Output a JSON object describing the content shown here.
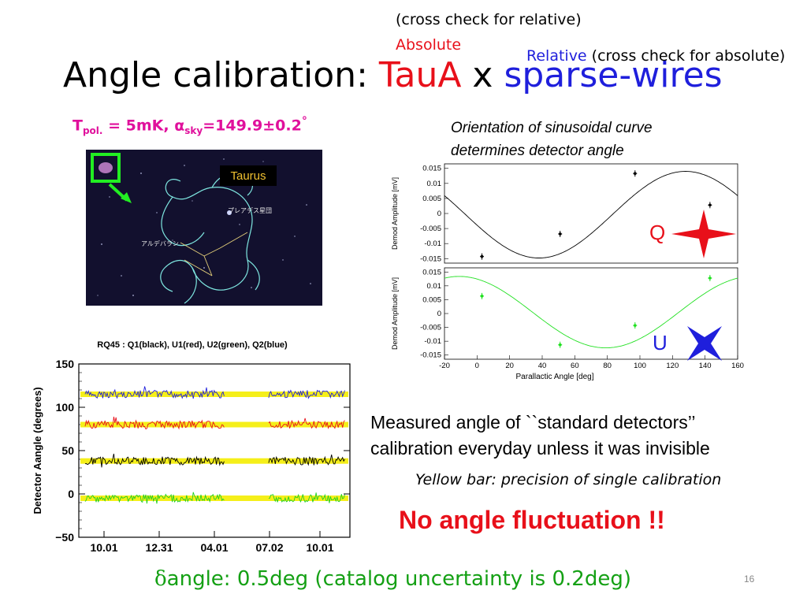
{
  "colors": {
    "red": "#e8101a",
    "blue": "#1f1fdc",
    "magenta": "#e0109c",
    "green": "#14a014",
    "yellow": "#f5ef1a"
  },
  "title": {
    "prefix": "Angle calibration: ",
    "taua": "TauA",
    "x": " x ",
    "sparse": "sparse-wires"
  },
  "notes": {
    "relative_check": "(cross check for relative)",
    "absolute": "Absolute",
    "relative": "Relative",
    "absolute_check": " (cross check for absolute)"
  },
  "tpol": {
    "t": "T",
    "sub1": "pol.",
    "mid": " = 5mK, α",
    "sub2": "sky",
    "val": "=149.9±0.2",
    "deg": "°"
  },
  "sky_image": {
    "label": "Taurus",
    "pleiades": "プレアデス星団",
    "aldebaran": "アルデバラン"
  },
  "orientation_text": {
    "line1": "Orientation of sinusoidal curve",
    "line2": "determines detector angle"
  },
  "measured_text": {
    "line1": "Measured angle of ``standard detectors’’",
    "line2": "calibration everyday unless it was invisible"
  },
  "yellow_bar_text": "Yellow bar: precision of single calibration",
  "no_fluct": "No angle fluctuation !!",
  "delta_angle": {
    "symbol": "δ",
    "text": "angle: 0.5deg (catalog uncertainty is 0.2deg)"
  },
  "page_number": "16",
  "chart_data": [
    {
      "type": "scatter",
      "name_text": "",
      "ylabel": "Demod Amplitude [mV]",
      "xlim": [
        -20,
        160
      ],
      "ylim": [
        -0.0165,
        0.0165
      ],
      "yticks": [
        "0.015",
        "0.01",
        "0.005",
        "0",
        "-0.005",
        "-0.01",
        "-0.015"
      ],
      "marker": "Q",
      "color": "#000000",
      "points": [
        {
          "x": 3,
          "y": -0.0143
        },
        {
          "x": 51,
          "y": -0.0068
        },
        {
          "x": 97,
          "y": 0.0133
        },
        {
          "x": 143,
          "y": 0.0028
        }
      ],
      "fit": {
        "amplitude": 0.0144,
        "phase_deg": 194,
        "offset": -0.0004
      }
    },
    {
      "type": "scatter",
      "ylabel": "Demod Amplitude [mV]",
      "xlabel": "Parallactic Angle [deg]",
      "xlim": [
        -20,
        160
      ],
      "ylim": [
        -0.0165,
        0.0165
      ],
      "xticks": [
        "-20",
        "0",
        "20",
        "40",
        "60",
        "80",
        "100",
        "120",
        "140",
        "160"
      ],
      "yticks": [
        "0.015",
        "0.01",
        "0.005",
        "0",
        "-0.005",
        "-0.01",
        "-0.015"
      ],
      "marker": "U",
      "color": "#20e020",
      "points": [
        {
          "x": 3,
          "y": 0.0063
        },
        {
          "x": 51,
          "y": -0.0113
        },
        {
          "x": 97,
          "y": -0.0043
        },
        {
          "x": 143,
          "y": 0.0128
        }
      ],
      "fit": {
        "amplitude": 0.0129,
        "phase_deg": 112,
        "offset": 0.0005
      }
    },
    {
      "type": "line",
      "title": "RQ45 : Q1(black), U1(red), U2(green), Q2(blue)",
      "ylabel": "Detector Aangle (degrees)",
      "ylim": [
        -50,
        150
      ],
      "yticks": [
        "150",
        "100",
        "50",
        "0",
        "−50"
      ],
      "xticks": [
        "10.01",
        "12.31",
        "04.01",
        "07.02",
        "10.01"
      ],
      "series": [
        {
          "name": "Q2(blue)",
          "mean": 115,
          "color": "#1f1fdc"
        },
        {
          "name": "U1(red)",
          "mean": 80,
          "color": "#e8101a"
        },
        {
          "name": "Q1(black)",
          "mean": 38,
          "color": "#000000"
        },
        {
          "name": "U2(green)",
          "mean": -5,
          "color": "#20d020"
        }
      ],
      "gap": {
        "from": 0.54,
        "to": 0.71
      }
    }
  ]
}
